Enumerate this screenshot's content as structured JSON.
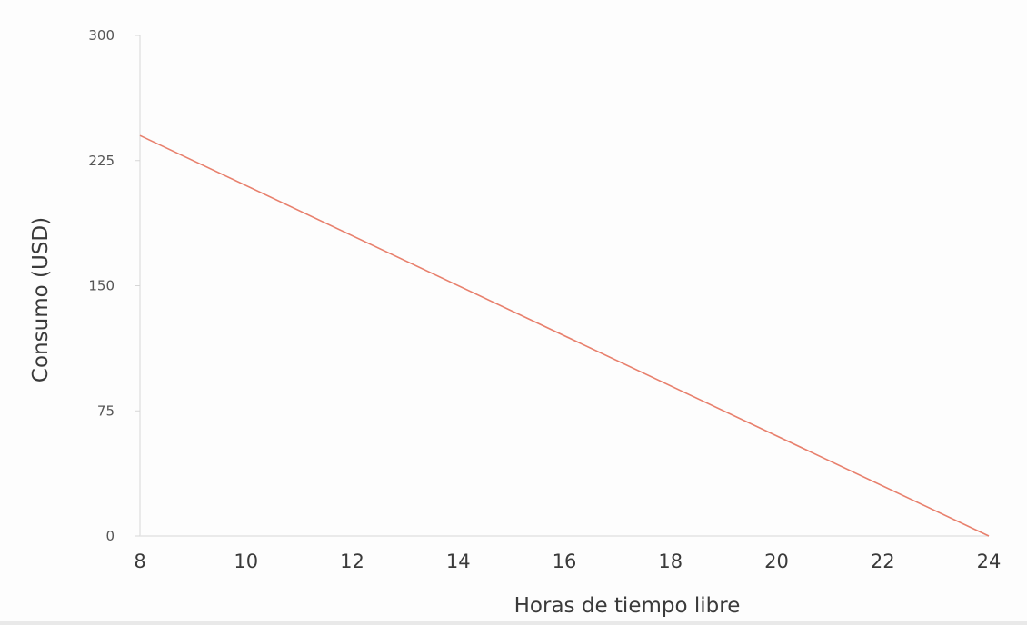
{
  "chart_data": {
    "type": "line",
    "title": "",
    "xlabel": "Horas de tiempo libre",
    "ylabel": "Consumo (USD)",
    "xlim": [
      8,
      24
    ],
    "ylim": [
      0,
      300
    ],
    "xticks": [
      8,
      10,
      12,
      14,
      16,
      18,
      20,
      22,
      24
    ],
    "yticks": [
      0,
      75,
      150,
      225,
      300
    ],
    "grid": false,
    "series": [
      {
        "color": "#e8806d",
        "x": [
          8,
          24
        ],
        "y": [
          240,
          0
        ]
      }
    ]
  }
}
